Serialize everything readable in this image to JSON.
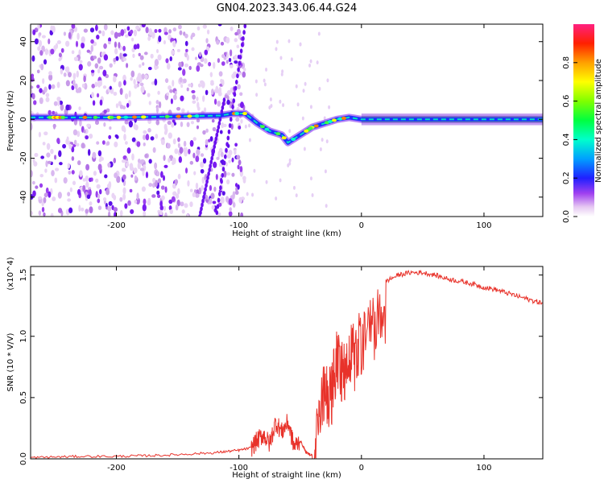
{
  "title": "GN04.2023.343.06.44.G24",
  "chart_data": [
    {
      "type": "heatmap",
      "xlabel": "Height of straight line (km)",
      "ylabel": "Frequency (Hz)",
      "xlim": [
        -270,
        148
      ],
      "ylim": [
        -50,
        49
      ],
      "x_ticks": [
        -200,
        -100,
        0,
        100
      ],
      "y_ticks": [
        -40,
        -20,
        0,
        20,
        40
      ],
      "colorbar": {
        "label": "Normalized spectral amplitude",
        "range": [
          0,
          1
        ],
        "ticks": [
          "0.0",
          "0.2",
          "0.4",
          "0.6",
          "0.8"
        ]
      },
      "dominant_frequency_track": {
        "x": [
          -270,
          -200,
          -150,
          -115,
          -105,
          -95,
          -85,
          -75,
          -65,
          -60,
          -55,
          -50,
          -45,
          -40,
          -30,
          -20,
          -10,
          0,
          50,
          100,
          148
        ],
        "y": [
          1,
          1,
          1.5,
          2,
          3,
          3,
          -2,
          -6,
          -8,
          -12,
          -10,
          -8,
          -6,
          -4,
          -2,
          0,
          1,
          0,
          0,
          0,
          0
        ]
      },
      "grid": false
    },
    {
      "type": "line",
      "xlabel": "Height of straight line (km)",
      "ylabel": "SNR (10 * V/V)",
      "y_multiplier": "(x10^4)",
      "xlim": [
        -270,
        148
      ],
      "ylim": [
        0,
        1.57
      ],
      "x_ticks": [
        -200,
        -100,
        0,
        100
      ],
      "y_ticks": [
        "0.0",
        "0.5",
        "1.0",
        "1.5"
      ],
      "series": [
        {
          "color": "#e8322a",
          "x": [
            -270,
            -250,
            -230,
            -200,
            -180,
            -160,
            -140,
            -120,
            -110,
            -100,
            -90,
            -85,
            -80,
            -75,
            -70,
            -65,
            -60,
            -55,
            -50,
            -45,
            -40,
            -35,
            -30,
            -25,
            -20,
            -15,
            -10,
            -5,
            0,
            10,
            20,
            30,
            40,
            50,
            60,
            70,
            80,
            90,
            100,
            110,
            120,
            130,
            140,
            148
          ],
          "y": [
            0.01,
            0.015,
            0.02,
            0.02,
            0.025,
            0.03,
            0.04,
            0.05,
            0.06,
            0.07,
            0.09,
            0.15,
            0.2,
            0.12,
            0.3,
            0.22,
            0.3,
            0.1,
            0.15,
            0.05,
            0.03,
            0.6,
            0.9,
            0.75,
            1.1,
            0.95,
            1.15,
            1.1,
            1.25,
            1.35,
            1.45,
            1.5,
            1.52,
            1.52,
            1.5,
            1.47,
            1.45,
            1.43,
            1.4,
            1.38,
            1.35,
            1.32,
            1.29,
            1.27
          ]
        }
      ],
      "grid": false
    }
  ]
}
